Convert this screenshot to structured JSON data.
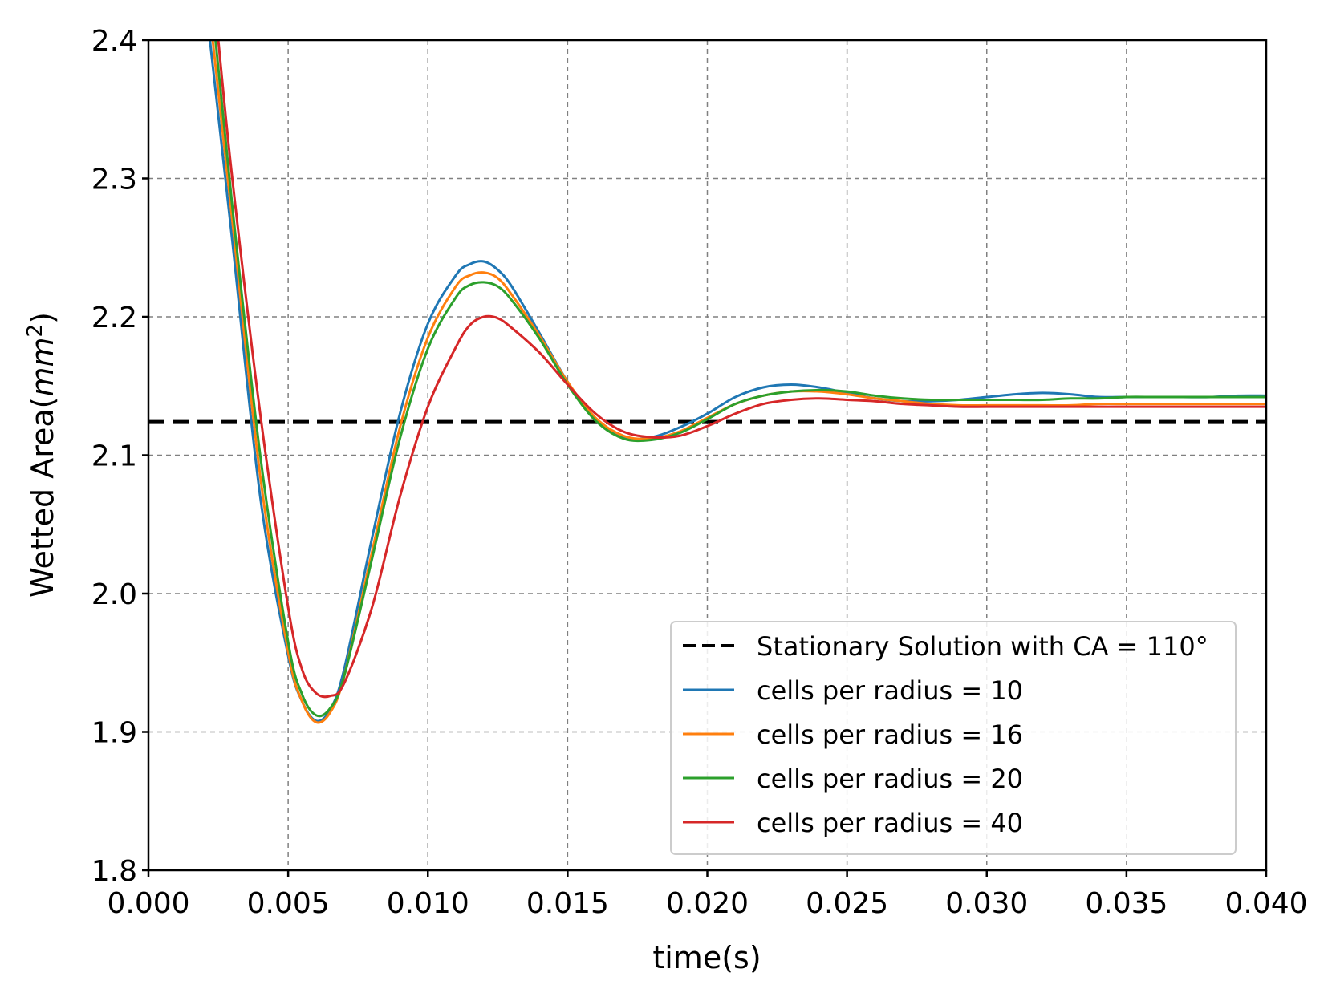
{
  "chart_data": {
    "type": "line",
    "title": "",
    "xlabel": "time(s)",
    "ylabel_main": "Wetted Area(",
    "ylabel_unit": "mm",
    "ylabel_exp": "2",
    "ylabel_close": ")",
    "xlim": [
      0.0,
      0.04
    ],
    "ylim": [
      1.8,
      2.4
    ],
    "xticks": [
      "0.000",
      "0.005",
      "0.010",
      "0.015",
      "0.020",
      "0.025",
      "0.030",
      "0.035",
      "0.040"
    ],
    "xtick_values": [
      0.0,
      0.005,
      0.01,
      0.015,
      0.02,
      0.025,
      0.03,
      0.035,
      0.04
    ],
    "yticks": [
      "1.8",
      "1.9",
      "2.0",
      "2.1",
      "2.2",
      "2.3",
      "2.4"
    ],
    "ytick_values": [
      1.8,
      1.9,
      2.0,
      2.1,
      2.2,
      2.3,
      2.4
    ],
    "grid": true,
    "legend_position": "lower-right",
    "reference_line": {
      "name": "Stationary Solution with CA = 110°",
      "y": 2.124,
      "color": "#000000",
      "style": "dashed"
    },
    "series": [
      {
        "name": "cells per radius = 10",
        "color": "#1f77b4",
        "x": [
          0.0022,
          0.003,
          0.004,
          0.005,
          0.0055,
          0.006,
          0.0065,
          0.007,
          0.008,
          0.009,
          0.01,
          0.011,
          0.0115,
          0.012,
          0.0125,
          0.013,
          0.014,
          0.015,
          0.016,
          0.017,
          0.018,
          0.019,
          0.02,
          0.021,
          0.022,
          0.023,
          0.024,
          0.025,
          0.026,
          0.027,
          0.028,
          0.029,
          0.03,
          0.031,
          0.032,
          0.033,
          0.034,
          0.035,
          0.036,
          0.037,
          0.038,
          0.039,
          0.04
        ],
        "y": [
          2.4,
          2.255,
          2.07,
          1.955,
          1.922,
          1.908,
          1.916,
          1.945,
          2.04,
          2.13,
          2.195,
          2.23,
          2.238,
          2.24,
          2.234,
          2.222,
          2.188,
          2.153,
          2.126,
          2.113,
          2.113,
          2.12,
          2.13,
          2.142,
          2.149,
          2.151,
          2.149,
          2.145,
          2.141,
          2.139,
          2.139,
          2.14,
          2.142,
          2.144,
          2.145,
          2.144,
          2.142,
          2.142,
          2.142,
          2.142,
          2.142,
          2.143,
          2.143
        ]
      },
      {
        "name": "cells per radius = 16",
        "color": "#ff7f0e",
        "x": [
          0.0023,
          0.003,
          0.004,
          0.005,
          0.0055,
          0.006,
          0.0065,
          0.007,
          0.008,
          0.009,
          0.01,
          0.011,
          0.0115,
          0.012,
          0.0125,
          0.013,
          0.014,
          0.015,
          0.016,
          0.017,
          0.018,
          0.019,
          0.02,
          0.021,
          0.022,
          0.023,
          0.024,
          0.025,
          0.026,
          0.027,
          0.028,
          0.029,
          0.03,
          0.031,
          0.032,
          0.033,
          0.034,
          0.035,
          0.036,
          0.037,
          0.038,
          0.039,
          0.04
        ],
        "y": [
          2.4,
          2.27,
          2.085,
          1.958,
          1.922,
          1.907,
          1.914,
          1.94,
          2.03,
          2.12,
          2.185,
          2.222,
          2.23,
          2.232,
          2.228,
          2.216,
          2.186,
          2.153,
          2.127,
          2.114,
          2.112,
          2.117,
          2.127,
          2.137,
          2.143,
          2.146,
          2.146,
          2.144,
          2.141,
          2.139,
          2.137,
          2.136,
          2.136,
          2.136,
          2.136,
          2.136,
          2.137,
          2.137,
          2.137,
          2.137,
          2.137,
          2.137,
          2.137
        ]
      },
      {
        "name": "cells per radius = 20",
        "color": "#2ca02c",
        "x": [
          0.0024,
          0.003,
          0.004,
          0.005,
          0.0055,
          0.006,
          0.0065,
          0.007,
          0.008,
          0.009,
          0.01,
          0.011,
          0.0115,
          0.012,
          0.0125,
          0.013,
          0.014,
          0.015,
          0.016,
          0.017,
          0.018,
          0.019,
          0.02,
          0.021,
          0.022,
          0.023,
          0.024,
          0.025,
          0.026,
          0.027,
          0.028,
          0.029,
          0.03,
          0.031,
          0.032,
          0.033,
          0.034,
          0.035,
          0.036,
          0.037,
          0.038,
          0.039,
          0.04
        ],
        "y": [
          2.4,
          2.28,
          2.1,
          1.965,
          1.927,
          1.912,
          1.917,
          1.94,
          2.025,
          2.112,
          2.177,
          2.214,
          2.223,
          2.225,
          2.222,
          2.212,
          2.184,
          2.151,
          2.125,
          2.112,
          2.111,
          2.116,
          2.126,
          2.137,
          2.143,
          2.146,
          2.147,
          2.146,
          2.143,
          2.141,
          2.14,
          2.14,
          2.14,
          2.14,
          2.14,
          2.141,
          2.141,
          2.142,
          2.142,
          2.142,
          2.142,
          2.142,
          2.142
        ]
      },
      {
        "name": "cells per radius = 40",
        "color": "#d62728",
        "x": [
          0.0025,
          0.003,
          0.004,
          0.005,
          0.0055,
          0.006,
          0.0065,
          0.007,
          0.008,
          0.009,
          0.01,
          0.011,
          0.0115,
          0.012,
          0.0125,
          0.013,
          0.014,
          0.015,
          0.016,
          0.017,
          0.018,
          0.019,
          0.02,
          0.021,
          0.022,
          0.023,
          0.024,
          0.025,
          0.026,
          0.027,
          0.028,
          0.029,
          0.03,
          0.031,
          0.032,
          0.033,
          0.034,
          0.035,
          0.036,
          0.037,
          0.038,
          0.039,
          0.04
        ],
        "y": [
          2.4,
          2.3,
          2.13,
          1.99,
          1.945,
          1.928,
          1.926,
          1.935,
          1.99,
          2.07,
          2.135,
          2.178,
          2.194,
          2.2,
          2.199,
          2.192,
          2.174,
          2.151,
          2.13,
          2.117,
          2.113,
          2.114,
          2.121,
          2.13,
          2.137,
          2.14,
          2.141,
          2.14,
          2.139,
          2.137,
          2.136,
          2.135,
          2.135,
          2.135,
          2.135,
          2.135,
          2.135,
          2.135,
          2.135,
          2.135,
          2.135,
          2.135,
          2.135
        ]
      }
    ]
  }
}
